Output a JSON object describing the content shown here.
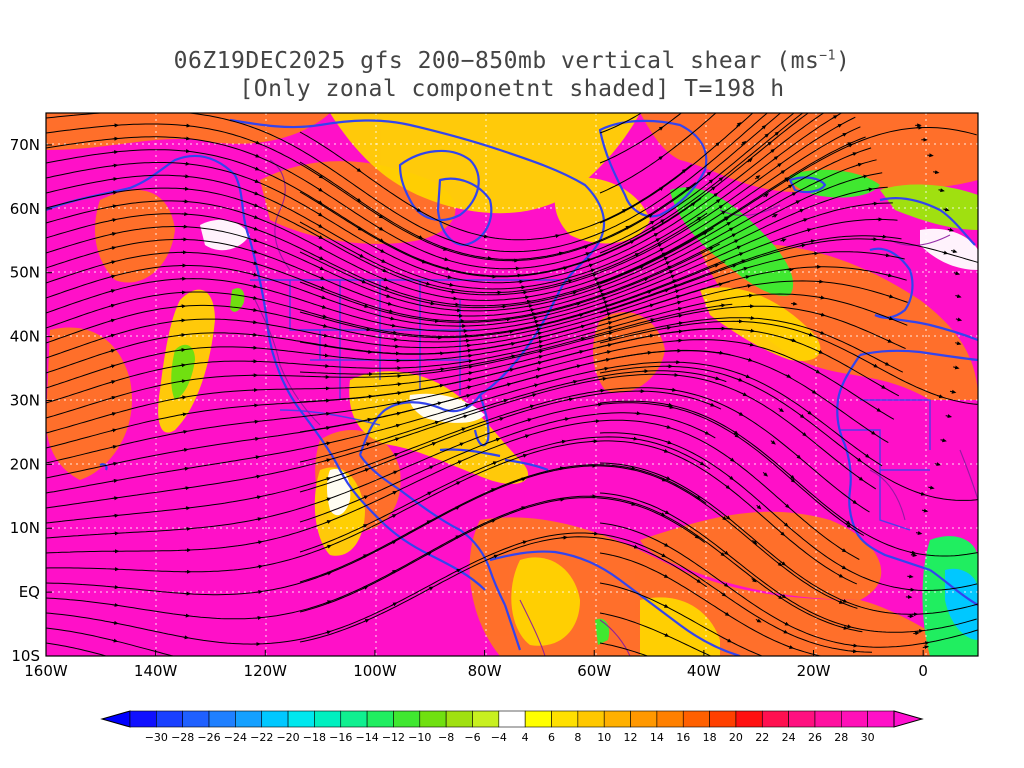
{
  "title": {
    "line1": "06Z19DEC2025 gfs 200−850mb vertical shear (ms",
    "line1_sup": "−1",
    "line1_end": ")",
    "line2": "[Only zonal componetnt shaded] T=198 h"
  },
  "map": {
    "lat_labels": [
      "70N",
      "60N",
      "50N",
      "40N",
      "30N",
      "20N",
      "10N",
      "EQ",
      "10S"
    ],
    "lat_values": [
      70,
      60,
      50,
      40,
      30,
      20,
      10,
      0,
      -10
    ],
    "lon_labels": [
      "160W",
      "140W",
      "120W",
      "100W",
      "80W",
      "60W",
      "40W",
      "20W",
      "0"
    ],
    "lon_values": [
      -160,
      -140,
      -120,
      -100,
      -80,
      -60,
      -40,
      -20,
      0
    ],
    "lat_range": [
      -10,
      75
    ],
    "lon_range": [
      -160,
      10
    ],
    "grid": "dotted white",
    "coastline_color": "#3344ee",
    "contour_color": "#8a1aa0",
    "streamline_color": "#000000"
  },
  "colorbar": {
    "labels": [
      "−30",
      "−28",
      "−26",
      "−24",
      "−22",
      "−20",
      "−18",
      "−16",
      "−14",
      "−12",
      "−10",
      "−8",
      "−6",
      "−4",
      "4",
      "6",
      "8",
      "10",
      "12",
      "14",
      "16",
      "18",
      "20",
      "22",
      "24",
      "26",
      "28",
      "30"
    ],
    "colors": [
      "#1010ff",
      "#1a40ff",
      "#1f60ff",
      "#1f80ff",
      "#14a0ff",
      "#00c8ff",
      "#00e8ee",
      "#00f0c0",
      "#10f090",
      "#20ee60",
      "#40e830",
      "#70e010",
      "#a0e010",
      "#c8f020",
      "#ffffff",
      "#ffff00",
      "#ffe000",
      "#ffc800",
      "#ffb000",
      "#ff9800",
      "#ff8000",
      "#ff6000",
      "#ff4000",
      "#ff1010",
      "#ff1050",
      "#ff1080",
      "#ff10a0",
      "#ff10b8",
      "#ff10c8"
    ],
    "under_color": "#0000ff",
    "over_color": "#ff10d0"
  }
}
